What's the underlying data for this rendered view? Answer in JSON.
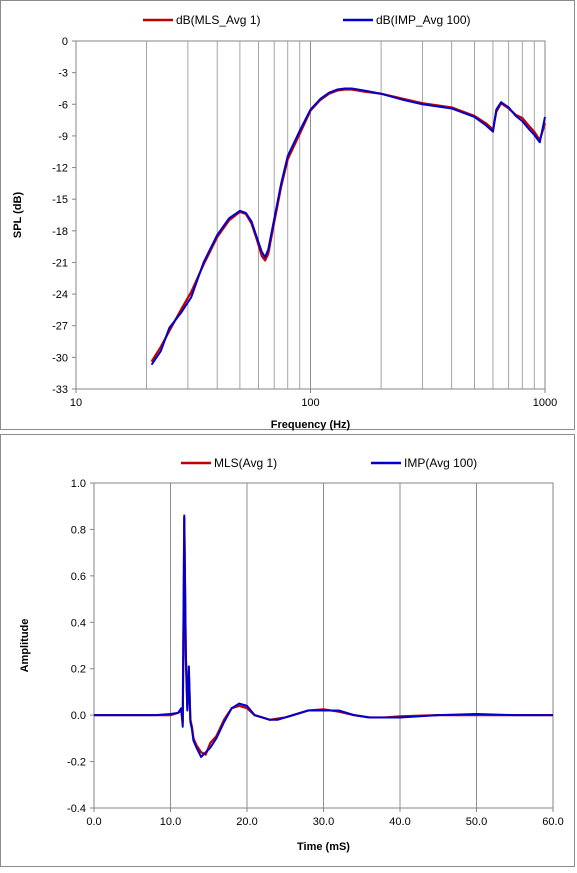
{
  "chart_data": [
    {
      "type": "line",
      "title": "",
      "xlabel": "Frequency (Hz)",
      "ylabel": "SPL (dB)",
      "xscale": "log",
      "xlim": [
        10,
        1000
      ],
      "ylim": [
        -33,
        0
      ],
      "xticks": [
        10,
        100,
        1000
      ],
      "yticks": [
        0,
        -3,
        -6,
        -9,
        -12,
        -15,
        -18,
        -21,
        -24,
        -27,
        -30,
        -33
      ],
      "grid": true,
      "legend_position": "top",
      "series": [
        {
          "name": "dB(MLS_Avg 1)",
          "color": "#c00000",
          "x": [
            21,
            23,
            25,
            28,
            31,
            35,
            40,
            45,
            50,
            53,
            56,
            59,
            62,
            64,
            66,
            70,
            75,
            80,
            90,
            100,
            110,
            120,
            130,
            140,
            150,
            170,
            200,
            250,
            300,
            400,
            500,
            560,
            600,
            620,
            650,
            700,
            750,
            800,
            850,
            900,
            950,
            1000
          ],
          "y": [
            -30.4,
            -29.0,
            -27.5,
            -25.5,
            -23.8,
            -21.2,
            -18.6,
            -17.0,
            -16.2,
            -16.4,
            -17.3,
            -18.8,
            -20.4,
            -20.8,
            -20.2,
            -17.2,
            -13.8,
            -11.2,
            -8.8,
            -6.6,
            -5.6,
            -5.0,
            -4.7,
            -4.6,
            -4.6,
            -4.8,
            -5.0,
            -5.5,
            -5.9,
            -6.3,
            -7.1,
            -7.8,
            -8.4,
            -6.7,
            -5.9,
            -6.4,
            -7.0,
            -7.3,
            -8.0,
            -8.6,
            -9.4,
            -7.8
          ]
        },
        {
          "name": "dB(IMP_Avg 100)",
          "color": "#0000cc",
          "x": [
            21,
            23,
            25,
            28,
            31,
            35,
            40,
            45,
            50,
            53,
            56,
            59,
            62,
            64,
            66,
            70,
            75,
            80,
            90,
            100,
            110,
            120,
            130,
            140,
            150,
            170,
            200,
            250,
            300,
            400,
            500,
            560,
            600,
            620,
            650,
            700,
            750,
            800,
            850,
            900,
            950,
            1000
          ],
          "y": [
            -30.7,
            -29.4,
            -27.2,
            -25.8,
            -24.3,
            -21.0,
            -18.4,
            -16.8,
            -16.1,
            -16.3,
            -17.1,
            -18.6,
            -20.0,
            -20.5,
            -19.8,
            -16.9,
            -13.5,
            -10.9,
            -8.5,
            -6.5,
            -5.5,
            -4.9,
            -4.6,
            -4.5,
            -4.5,
            -4.7,
            -5.0,
            -5.6,
            -6.0,
            -6.4,
            -7.2,
            -8.0,
            -8.6,
            -6.5,
            -5.8,
            -6.3,
            -7.1,
            -7.6,
            -8.3,
            -8.9,
            -9.6,
            -7.2
          ]
        }
      ]
    },
    {
      "type": "line",
      "title": "",
      "xlabel": "Time (mS)",
      "ylabel": "Amplitude",
      "xlim": [
        0,
        60
      ],
      "ylim": [
        -0.4,
        1.0
      ],
      "xticks": [
        "0.0",
        "10.0",
        "20.0",
        "30.0",
        "40.0",
        "50.0",
        "60.0"
      ],
      "yticks": [
        "1.0",
        "0.8",
        "0.6",
        "0.4",
        "0.2",
        "0.0",
        "-0.2",
        "-0.4"
      ],
      "grid": true,
      "legend_position": "top",
      "series": [
        {
          "name": "MLS(Avg 1)",
          "color": "#c00000",
          "x": [
            0,
            5,
            8,
            10,
            11,
            11.4,
            11.6,
            11.8,
            12.0,
            12.2,
            12.4,
            12.6,
            12.8,
            13.0,
            13.4,
            14.0,
            14.6,
            15.2,
            16.0,
            17.0,
            18.0,
            19.0,
            20.0,
            21.0,
            22.0,
            23.0,
            24.0,
            25.0,
            26.0,
            28.0,
            30.0,
            32.0,
            34.0,
            36.0,
            38.0,
            40.0,
            45.0,
            50.0,
            55.0,
            60.0
          ],
          "y": [
            0,
            0,
            0,
            0,
            0.01,
            0.02,
            -0.03,
            0.85,
            0.25,
            0.03,
            0.18,
            -0.02,
            -0.05,
            -0.1,
            -0.13,
            -0.16,
            -0.17,
            -0.12,
            -0.09,
            -0.02,
            0.03,
            0.04,
            0.03,
            0.0,
            -0.01,
            -0.02,
            -0.015,
            -0.01,
            0.0,
            0.02,
            0.025,
            0.015,
            0.0,
            -0.01,
            -0.01,
            -0.005,
            0.0,
            0.0,
            0.0,
            0.0
          ]
        },
        {
          "name": "IMP(Avg 100)",
          "color": "#0000cc",
          "x": [
            0,
            5,
            8,
            10,
            11,
            11.4,
            11.6,
            11.8,
            12.0,
            12.2,
            12.4,
            12.6,
            12.8,
            13.0,
            13.4,
            14.0,
            14.6,
            15.2,
            16.0,
            17.0,
            18.0,
            19.0,
            20.0,
            21.0,
            22.0,
            23.0,
            24.0,
            25.0,
            26.0,
            28.0,
            30.0,
            32.0,
            34.0,
            36.0,
            38.0,
            40.0,
            45.0,
            50.0,
            55.0,
            60.0
          ],
          "y": [
            0,
            0,
            0,
            0.005,
            0.01,
            0.03,
            -0.05,
            0.86,
            0.28,
            0.02,
            0.21,
            -0.03,
            -0.06,
            -0.11,
            -0.14,
            -0.18,
            -0.16,
            -0.14,
            -0.1,
            -0.03,
            0.03,
            0.05,
            0.04,
            0.0,
            -0.01,
            -0.02,
            -0.02,
            -0.01,
            0.0,
            0.02,
            0.02,
            0.02,
            0.0,
            -0.01,
            -0.01,
            -0.01,
            0.0,
            0.005,
            0.0,
            0.0
          ]
        }
      ]
    }
  ]
}
